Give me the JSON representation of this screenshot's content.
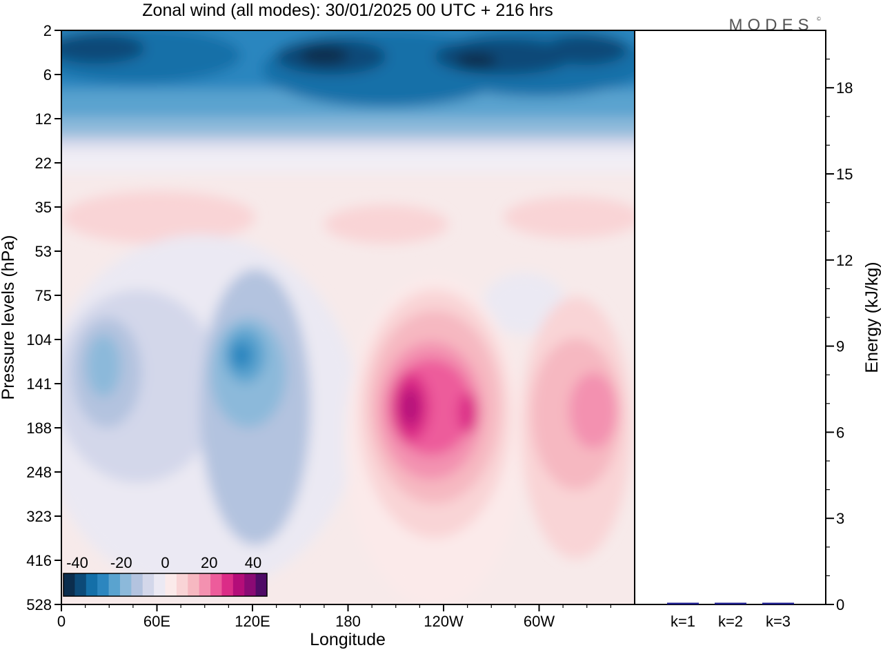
{
  "title": "Zonal wind (all modes):  30/01/2025  00 UTC  + 216 hrs",
  "logo_text": "MODES",
  "chart_data": [
    {
      "type": "heatmap",
      "xlabel": "Longitude",
      "ylabel": "Pressure levels (hPa)",
      "x_ticks": [
        "0",
        "60E",
        "120E",
        "180",
        "120W",
        "60W"
      ],
      "y_ticks": [
        "2",
        "6",
        "12",
        "22",
        "35",
        "53",
        "75",
        "104",
        "141",
        "188",
        "248",
        "323",
        "416",
        "528"
      ],
      "colorbar": {
        "ticks": [
          "-40",
          "-20",
          "0",
          "20",
          "40"
        ],
        "colors": [
          "#0b2d4d",
          "#0c4a78",
          "#146fa8",
          "#2c86bf",
          "#5aa3cf",
          "#8cb9da",
          "#b3c3df",
          "#d3d7ea",
          "#ebe9f3",
          "#fbeaea",
          "#f9d4d6",
          "#f6b8c1",
          "#f391b0",
          "#ed5c9b",
          "#db2c87",
          "#b40d79",
          "#8a0a74",
          "#4f0b66"
        ]
      },
      "features": [
        {
          "name": "easterlies-upper",
          "lon_range": [
            0,
            360
          ],
          "level_range": [
            2,
            16
          ],
          "value": -25
        },
        {
          "name": "westerly-max-east-pacific",
          "lon": 210,
          "level": 150,
          "value": 38
        },
        {
          "name": "easterly-min-west-pacific",
          "lon": 130,
          "level": 120,
          "value": -22
        }
      ]
    },
    {
      "type": "bar",
      "categories": [
        "k=1",
        "k=2",
        "k=3"
      ],
      "values": [
        0.05,
        0.04,
        0.02
      ],
      "ylabel": "Energy (kJ/kg)",
      "y_ticks": [
        "0",
        "3",
        "6",
        "9",
        "12",
        "15",
        "18"
      ],
      "ylim": [
        0,
        20
      ],
      "bar_color": "#1a1a8a"
    }
  ]
}
